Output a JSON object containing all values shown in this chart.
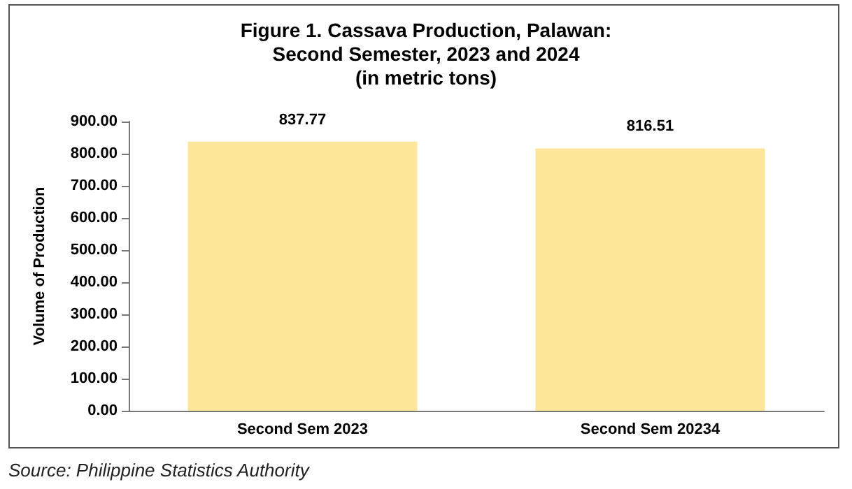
{
  "chart_data": {
    "type": "bar",
    "title": "Figure 1. Cassava Production, Palawan:\nSecond Semester, 2023 and 2024\n(in metric tons)",
    "ylabel": "Volume of Production",
    "categories": [
      "Second Sem 2023",
      "Second Sem 20234"
    ],
    "values": [
      837.77,
      816.51
    ],
    "color": "#fde59a",
    "ylim": [
      0,
      900
    ],
    "yticks": [
      {
        "value": 0,
        "label": "0.00"
      },
      {
        "value": 100,
        "label": "100.00"
      },
      {
        "value": 200,
        "label": "200.00"
      },
      {
        "value": 300,
        "label": "300.00"
      },
      {
        "value": 400,
        "label": "400.00"
      },
      {
        "value": 500,
        "label": "500.00"
      },
      {
        "value": 600,
        "label": "600.00"
      },
      {
        "value": 700,
        "label": "700.00"
      },
      {
        "value": 800,
        "label": "800.00"
      },
      {
        "value": 900,
        "label": "900.00"
      }
    ],
    "data_labels": true,
    "grid": false,
    "annotations": [
      "Source: Philippine Statistics Authority"
    ]
  }
}
